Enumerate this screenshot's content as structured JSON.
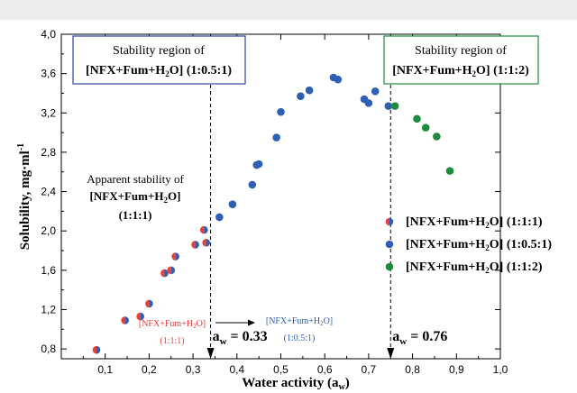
{
  "chart_data": {
    "type": "scatter",
    "title": "",
    "xlabel": "Water activity (a",
    "xlabel_sub": "w",
    "xlabel_end": ")",
    "ylabel": "Solubility, mg·ml",
    "ylabel_sup": "-1",
    "xlim": [
      0.0,
      1.0
    ],
    "ylim": [
      0.7,
      4.0
    ],
    "x_ticks": [
      0.1,
      0.2,
      0.3,
      0.4,
      0.5,
      0.6,
      0.7,
      0.8,
      0.9,
      1.0
    ],
    "x_tick_labels": [
      "0,1",
      "0,2",
      "0,3",
      "0,4",
      "0,5",
      "0,6",
      "0,7",
      "0,8",
      "0,9",
      "1,0"
    ],
    "y_ticks": [
      0.8,
      1.2,
      1.6,
      2.0,
      2.4,
      2.8,
      3.2,
      3.6,
      4.0
    ],
    "y_tick_labels": [
      "0,8",
      "1,2",
      "1,6",
      "2,0",
      "2,4",
      "2,8",
      "3,2",
      "3,6",
      "4,0"
    ],
    "grid": false,
    "legend_position": "right",
    "series": [
      {
        "name": "[NFX+Fum+H2O] (1:1:1)",
        "legend": {
          "main": "[NFX+Fum+H",
          "sub": "2",
          "tail": "O] (1:1:1)"
        },
        "marker": "split",
        "colors": [
          "#e8413c",
          "#2f5fb5"
        ],
        "x": [
          0.08,
          0.145,
          0.18,
          0.2,
          0.235,
          0.25,
          0.26,
          0.305,
          0.325,
          0.33
        ],
        "y": [
          0.79,
          1.09,
          1.13,
          1.26,
          1.57,
          1.6,
          1.74,
          1.86,
          2.01,
          1.88
        ]
      },
      {
        "name": "[NFX+Fum+H2O] (1:0.5:1)",
        "legend": {
          "main": "[NFX+Fum+H",
          "sub": "2",
          "tail": "O] (1:0.5:1)"
        },
        "marker": "circle",
        "colors": [
          "#2f5fb5"
        ],
        "x": [
          0.36,
          0.39,
          0.435,
          0.445,
          0.45,
          0.49,
          0.5,
          0.545,
          0.565,
          0.62,
          0.63,
          0.69,
          0.7,
          0.715,
          0.745
        ],
        "y": [
          2.14,
          2.27,
          2.47,
          2.67,
          2.68,
          2.95,
          3.21,
          3.37,
          3.43,
          3.56,
          3.54,
          3.34,
          3.3,
          3.42,
          3.27
        ]
      },
      {
        "name": "[NFX+Fum+H2O] (1:1:2)",
        "legend": {
          "main": "[NFX+Fum+H",
          "sub": "2",
          "tail": "O] (1:1:2)"
        },
        "marker": "circle",
        "colors": [
          "#1e8c3c"
        ],
        "x": [
          0.76,
          0.81,
          0.83,
          0.855,
          0.885
        ],
        "y": [
          3.27,
          3.14,
          3.05,
          2.96,
          2.61
        ]
      }
    ],
    "vlines": [
      {
        "x": 0.34,
        "label_main": "a",
        "label_sub": "w",
        "label_tail": " = 0.33"
      },
      {
        "x": 0.75,
        "label_main": "a",
        "label_sub": "w",
        "label_tail": " = 0.76"
      }
    ],
    "annotations": {
      "box_left": {
        "line1": "Stability region of",
        "line2_main": "[NFX+Fum+H",
        "line2_sub": "2",
        "line2_tail": "O] (1:0.5:1)",
        "border": "#2f3f9f"
      },
      "box_right": {
        "line1": "Stability region of",
        "line2_main": "[NFX+Fum+H",
        "line2_sub": "2",
        "line2_tail": "O] (1:1:2)",
        "border": "#1e8c3c"
      },
      "apparent": {
        "line1": "Apparent stability of",
        "line2_main": "[NFX+Fum+H",
        "line2_sub": "2",
        "line2_tail": "O]",
        "line3": "(1:1:1)"
      },
      "transition_from": {
        "main": "[NFX+Fum+H",
        "sub": "2",
        "tail": "O]",
        "ratio": "(1:1:1)",
        "color": "#e8413c"
      },
      "transition_to": {
        "main": "[NFX+Fum+H",
        "sub": "2",
        "tail": "O]",
        "ratio": "(1:0.5:1)",
        "color": "#2f5fb5"
      }
    }
  }
}
